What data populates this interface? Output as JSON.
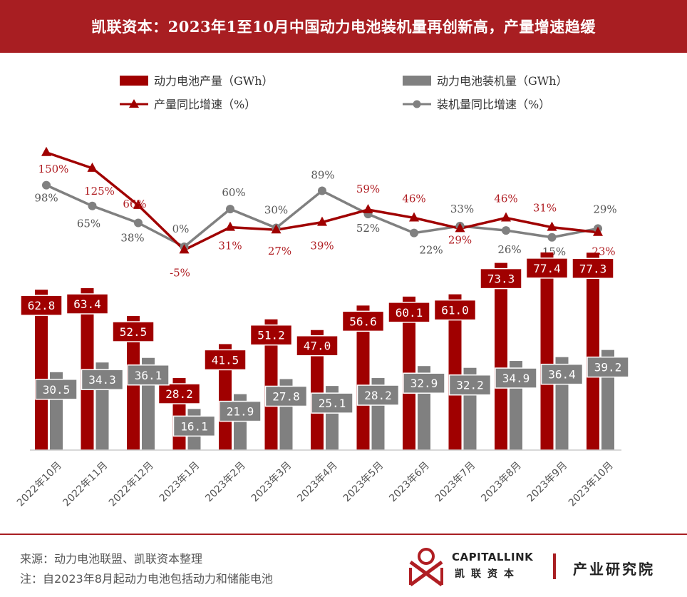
{
  "header": {
    "title": "凯联资本：2023年1至10月中国动力电池装机量再创新高，产量增速趋缓"
  },
  "chart_data": {
    "type": "bar",
    "categories": [
      "2022年10月",
      "2022年11月",
      "2022年12月",
      "2023年1月",
      "2023年2月",
      "2023年3月",
      "2023年4月",
      "2023年5月",
      "2023年6月",
      "2023年7月",
      "2023年8月",
      "2023年9月",
      "2023年10月"
    ],
    "series": [
      {
        "name": "动力电池产量（GWh）",
        "kind": "bar",
        "color": "#a00000",
        "values": [
          62.8,
          63.4,
          52.5,
          28.2,
          41.5,
          51.2,
          47.0,
          56.6,
          60.1,
          61.0,
          73.3,
          77.4,
          77.3
        ],
        "labels": [
          "62.8",
          "63.4",
          "52.5",
          "28.2",
          "41.5",
          "51.2",
          "47.0",
          "56.6",
          "60.1",
          "61.0",
          "73.3",
          "77.4",
          "77.3"
        ]
      },
      {
        "name": "动力电池装机量（GWh）",
        "kind": "bar",
        "color": "#808080",
        "values": [
          30.5,
          34.3,
          36.1,
          16.1,
          21.9,
          27.8,
          25.1,
          28.2,
          32.9,
          32.2,
          34.9,
          36.4,
          39.2
        ],
        "labels": [
          "30.5",
          "34.3",
          "36.1",
          "16.1",
          "21.9",
          "27.8",
          "25.1",
          "28.2",
          "32.9",
          "32.2",
          "34.9",
          "36.4",
          "39.2"
        ]
      },
      {
        "name": "产量同比增速（%）",
        "kind": "line",
        "marker": "triangle",
        "color": "#a00000",
        "values": [
          150,
          125,
          66,
          -5,
          31,
          27,
          39,
          59,
          46,
          29,
          46,
          31,
          23
        ],
        "labels": [
          "150%",
          "125%",
          "66%",
          "-5%",
          "31%",
          "27%",
          "39%",
          "59%",
          "46%",
          "29%",
          "46%",
          "31%",
          "23%"
        ]
      },
      {
        "name": "装机量同比增速（%）",
        "kind": "line",
        "marker": "circle",
        "color": "#808080",
        "values": [
          98,
          65,
          38,
          0,
          60,
          30,
          89,
          52,
          22,
          33,
          26,
          15,
          29
        ],
        "labels": [
          "98%",
          "65%",
          "38%",
          "0%",
          "60%",
          "30%",
          "89%",
          "52%",
          "22%",
          "33%",
          "26%",
          "15%",
          "29%"
        ]
      }
    ],
    "legend_position": "top",
    "grid": false
  },
  "footer": {
    "source": "来源：动力电池联盟、凯联资本整理",
    "note": "注：自2023年8月起动力电池包括动力和储能电池"
  },
  "logo": {
    "en": "CAPITALLINK",
    "cn": "凯联资本",
    "dept": "产业研究院"
  }
}
